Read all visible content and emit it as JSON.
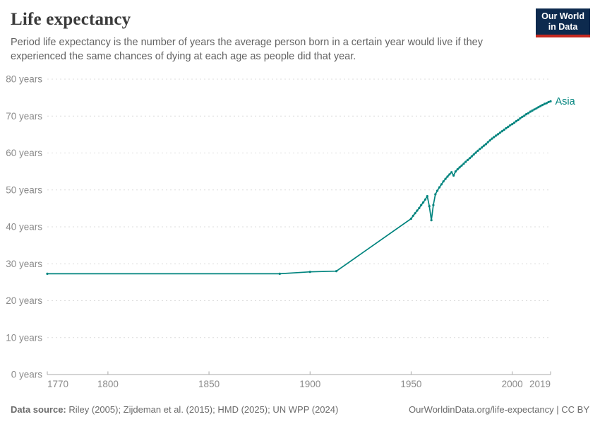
{
  "header": {
    "title": "Life expectancy",
    "subtitle": "Period life expectancy is the number of years the average person born in a certain year would live if they experienced the same chances of dying at each age as people did that year.",
    "logo": {
      "line1": "Our World",
      "line2": "in Data"
    }
  },
  "colors": {
    "series": "#00847E",
    "logo_bg": "#0D2A4E",
    "logo_accent": "#C5281F",
    "grid": "#dcdcdc",
    "axis": "#a9a9a9",
    "tick_label": "#8a8a8a"
  },
  "chart_data": {
    "type": "line",
    "title": "Life expectancy",
    "xlabel": "",
    "ylabel": "",
    "xlim": [
      1770,
      2019
    ],
    "ylim": [
      0,
      80
    ],
    "grid": "horizontal-dashed",
    "legend_position": "end-of-line-label",
    "x_ticks": [
      1770,
      1800,
      1850,
      1900,
      1950,
      2000,
      2019
    ],
    "y_ticks": [
      0,
      10,
      20,
      30,
      40,
      50,
      60,
      70,
      80
    ],
    "y_tick_labels": [
      "0 years",
      "10 years",
      "20 years",
      "30 years",
      "40 years",
      "50 years",
      "60 years",
      "70 years",
      "80 years"
    ],
    "series": [
      {
        "name": "Asia",
        "color": "#00847E",
        "points": [
          [
            1770,
            27.3
          ],
          [
            1885,
            27.3
          ],
          [
            1900,
            27.8
          ],
          [
            1913,
            28.0
          ],
          [
            1950,
            42.2
          ],
          [
            1951,
            43.0
          ],
          [
            1952,
            43.7
          ],
          [
            1953,
            44.4
          ],
          [
            1954,
            45.1
          ],
          [
            1955,
            45.9
          ],
          [
            1956,
            46.6
          ],
          [
            1957,
            47.4
          ],
          [
            1958,
            48.3
          ],
          [
            1959,
            45.6
          ],
          [
            1960,
            41.8
          ],
          [
            1961,
            45.9
          ],
          [
            1962,
            48.8
          ],
          [
            1963,
            49.8
          ],
          [
            1964,
            50.7
          ],
          [
            1965,
            51.5
          ],
          [
            1966,
            52.3
          ],
          [
            1967,
            53.0
          ],
          [
            1968,
            53.6
          ],
          [
            1969,
            54.2
          ],
          [
            1970,
            54.8
          ],
          [
            1971,
            53.9
          ],
          [
            1972,
            55.0
          ],
          [
            1973,
            55.6
          ],
          [
            1974,
            56.1
          ],
          [
            1975,
            56.6
          ],
          [
            1976,
            57.1
          ],
          [
            1977,
            57.6
          ],
          [
            1978,
            58.1
          ],
          [
            1979,
            58.6
          ],
          [
            1980,
            59.1
          ],
          [
            1981,
            59.6
          ],
          [
            1982,
            60.1
          ],
          [
            1983,
            60.6
          ],
          [
            1984,
            61.1
          ],
          [
            1985,
            61.5
          ],
          [
            1986,
            62.0
          ],
          [
            1987,
            62.4
          ],
          [
            1988,
            62.9
          ],
          [
            1989,
            63.4
          ],
          [
            1990,
            63.9
          ],
          [
            1991,
            64.3
          ],
          [
            1992,
            64.7
          ],
          [
            1993,
            65.1
          ],
          [
            1994,
            65.5
          ],
          [
            1995,
            65.9
          ],
          [
            1996,
            66.3
          ],
          [
            1997,
            66.7
          ],
          [
            1998,
            67.1
          ],
          [
            1999,
            67.5
          ],
          [
            2000,
            67.8
          ],
          [
            2001,
            68.2
          ],
          [
            2002,
            68.6
          ],
          [
            2003,
            69.0
          ],
          [
            2004,
            69.4
          ],
          [
            2005,
            69.8
          ],
          [
            2006,
            70.1
          ],
          [
            2007,
            70.5
          ],
          [
            2008,
            70.8
          ],
          [
            2009,
            71.2
          ],
          [
            2010,
            71.5
          ],
          [
            2011,
            71.8
          ],
          [
            2012,
            72.1
          ],
          [
            2013,
            72.4
          ],
          [
            2014,
            72.7
          ],
          [
            2015,
            73.0
          ],
          [
            2016,
            73.3
          ],
          [
            2017,
            73.5
          ],
          [
            2018,
            73.8
          ],
          [
            2019,
            74.0
          ]
        ]
      }
    ]
  },
  "footer": {
    "source_label": "Data source:",
    "sources": " Riley (2005); Zijdeman et al. (2015); HMD (2025); UN WPP (2024)",
    "link": "OurWorldinData.org/life-expectancy | CC BY"
  }
}
